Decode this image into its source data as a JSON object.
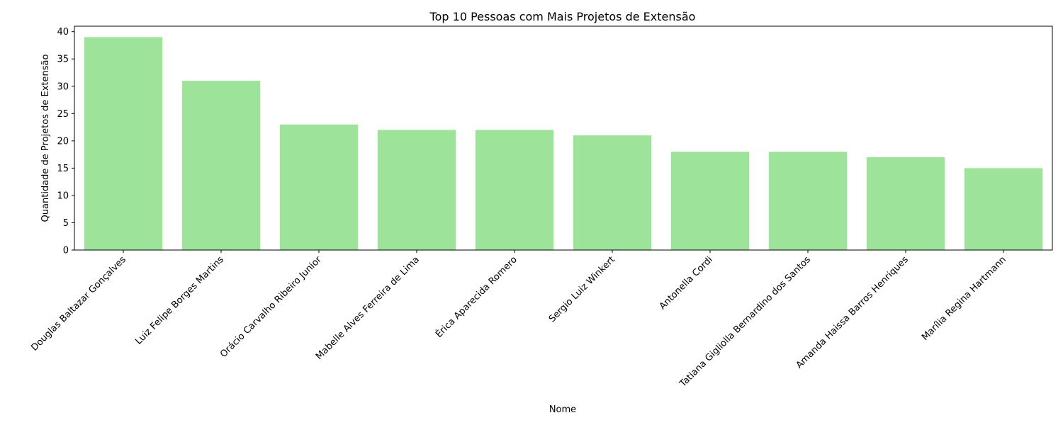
{
  "chart_data": {
    "type": "bar",
    "title": "Top 10 Pessoas com Mais Projetos de Extensão",
    "xlabel": "Nome",
    "ylabel": "Quantidade de Projetos de Extensão",
    "categories": [
      "Douglas Baltazar Gonçalves",
      "Luiz Felipe Borges Martins",
      "Orácio Carvalho Ribeiro Junior",
      "Mabelle Alves Ferreira de Lima",
      "Érica Aparecida Romero",
      "Sergio Luiz Winkert",
      "Antonella Cordi",
      "Tatiana Gigliolla Bernardino dos Santos",
      "Amanda Haissa Barros Henriques",
      "Marília Regina Hartmann"
    ],
    "values": [
      39,
      31,
      23,
      22,
      22,
      21,
      18,
      18,
      17,
      15
    ],
    "ylim": [
      0,
      41
    ],
    "yticks": [
      0,
      5,
      10,
      15,
      20,
      25,
      30,
      35,
      40
    ],
    "grid": false,
    "legend": "none",
    "colors": {
      "bar": "#9de39a",
      "axis": "#000000",
      "background": "#ffffff"
    }
  }
}
